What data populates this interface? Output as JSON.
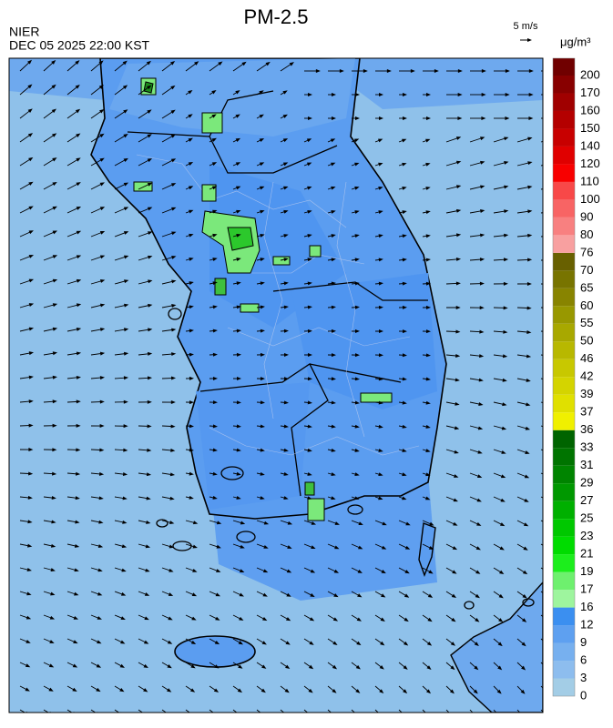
{
  "header": {
    "title": "PM-2.5",
    "agency": "NIER",
    "datetime": "DEC 05 2025 22:00 KST",
    "wind_scale": "5 m/s"
  },
  "colorbar": {
    "unit": "μg/m³",
    "ticks": [
      0,
      3,
      6,
      9,
      12,
      16,
      17,
      19,
      21,
      23,
      25,
      27,
      29,
      31,
      33,
      36,
      37,
      39,
      42,
      46,
      50,
      55,
      60,
      65,
      70,
      76,
      80,
      90,
      100,
      110,
      120,
      140,
      150,
      160,
      170,
      200
    ],
    "colors": [
      "#a3cde6",
      "#8dbdee",
      "#77b0ef",
      "#5ea0f0",
      "#3b8ff0",
      "#9ef59e",
      "#6ef06e",
      "#1cee1c",
      "#00dc00",
      "#00c800",
      "#00b000",
      "#009800",
      "#008400",
      "#007400",
      "#006400",
      "#f0f000",
      "#e0e000",
      "#d4d400",
      "#c8c800",
      "#b8b800",
      "#a8a800",
      "#989800",
      "#888400",
      "#787400",
      "#686000",
      "#f8a0a0",
      "#f88080",
      "#f86464",
      "#f84848",
      "#f80000",
      "#e00000",
      "#c80000",
      "#b40000",
      "#a00000",
      "#880000",
      "#700000"
    ]
  }
}
